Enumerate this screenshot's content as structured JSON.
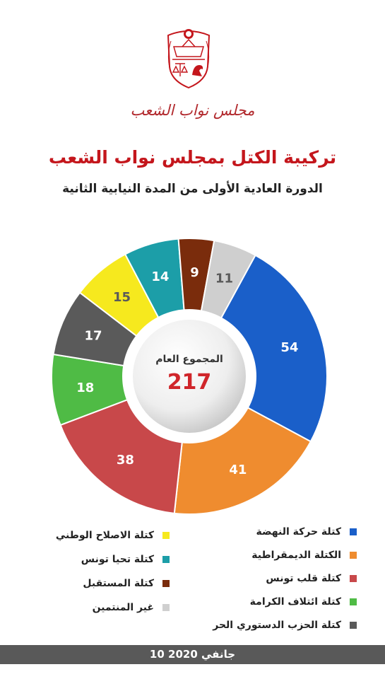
{
  "header": {
    "org_name": "مجلس نواب الشعب",
    "title": "تركيبة الكتل بمجلس نواب الشعب",
    "subtitle": "الدورة العادية الأولى من المدة النيابية الثانية"
  },
  "center": {
    "label": "المجموع العام",
    "total": "217"
  },
  "colors": {
    "title": "#c4161c",
    "total": "#d0262b",
    "footer_bg": "#595959"
  },
  "chart_data": {
    "type": "pie",
    "title": "تركيبة الكتل بمجلس نواب الشعب",
    "total": 217,
    "series": [
      {
        "name": "كتلة حركة النهضة",
        "value": 54,
        "color": "#1a5fc9"
      },
      {
        "name": "الكتلة الديمقراطية",
        "value": 41,
        "color": "#ef8c2f"
      },
      {
        "name": "كتلة قلب تونس",
        "value": 38,
        "color": "#c8484a"
      },
      {
        "name": "كتلة ائتلاف الكرامة",
        "value": 18,
        "color": "#4fbb45"
      },
      {
        "name": "كتلة الحزب الدستوري الحر",
        "value": 17,
        "color": "#5a5a5a"
      },
      {
        "name": "كتلة الاصلاح الوطني",
        "value": 15,
        "color": "#f6e91e"
      },
      {
        "name": "كتلة تحيا تونس",
        "value": 14,
        "color": "#1c9ea8"
      },
      {
        "name": "كتلة المستقبل",
        "value": 9,
        "color": "#7a2c0c"
      },
      {
        "name": "غير المنتمين",
        "value": 11,
        "color": "#cfcfcf"
      }
    ]
  },
  "legend": {
    "right": [
      {
        "label": "كتلة حركة النهضة",
        "color": "#1a5fc9"
      },
      {
        "label": "الكتلة الديمقراطية",
        "color": "#ef8c2f"
      },
      {
        "label": "كتلة قلب تونس",
        "color": "#c8484a"
      },
      {
        "label": "كتلة ائتلاف الكرامة",
        "color": "#4fbb45"
      },
      {
        "label": "كتلة الحزب الدستوري الحر",
        "color": "#5a5a5a"
      }
    ],
    "left": [
      {
        "label": "كتلة الاصلاح الوطني",
        "color": "#f6e91e"
      },
      {
        "label": "كتلة تحيا تونس",
        "color": "#1c9ea8"
      },
      {
        "label": "كتلة المستقبل",
        "color": "#7a2c0c"
      },
      {
        "label": "غير المنتمين",
        "color": "#cfcfcf"
      }
    ]
  },
  "footer": {
    "date": "10 جانفي 2020"
  }
}
